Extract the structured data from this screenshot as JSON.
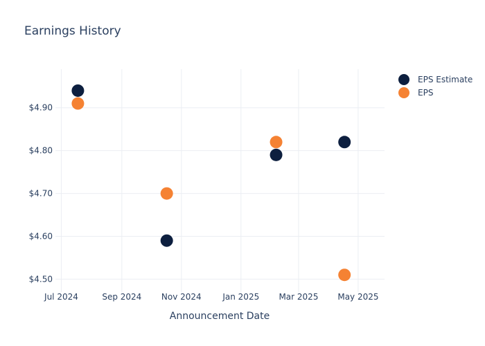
{
  "chart_data": {
    "type": "scatter",
    "title": "Earnings History",
    "xlabel": "Announcement Date",
    "ylabel": "",
    "x_ticks": [
      "Jul 2024",
      "Sep 2024",
      "Nov 2024",
      "Jan 2025",
      "Mar 2025",
      "May 2025"
    ],
    "y_ticks": [
      "$4.50",
      "$4.60",
      "$4.70",
      "$4.80",
      "$4.90"
    ],
    "x_range": [
      "2024-06-25",
      "2025-05-28"
    ],
    "y_range": [
      4.47,
      4.99
    ],
    "grid": true,
    "legend_position": "top-right",
    "series": [
      {
        "name": "EPS Estimate",
        "color": "#0d1f3f",
        "points": [
          {
            "x": "2024-07-18",
            "y": 4.94
          },
          {
            "x": "2024-10-17",
            "y": 4.59
          },
          {
            "x": "2025-02-06",
            "y": 4.79
          },
          {
            "x": "2025-04-17",
            "y": 4.82
          }
        ]
      },
      {
        "name": "EPS",
        "color": "#f58233",
        "points": [
          {
            "x": "2024-07-18",
            "y": 4.91
          },
          {
            "x": "2024-10-17",
            "y": 4.7
          },
          {
            "x": "2025-02-06",
            "y": 4.82
          },
          {
            "x": "2025-04-17",
            "y": 4.51
          }
        ]
      }
    ]
  }
}
